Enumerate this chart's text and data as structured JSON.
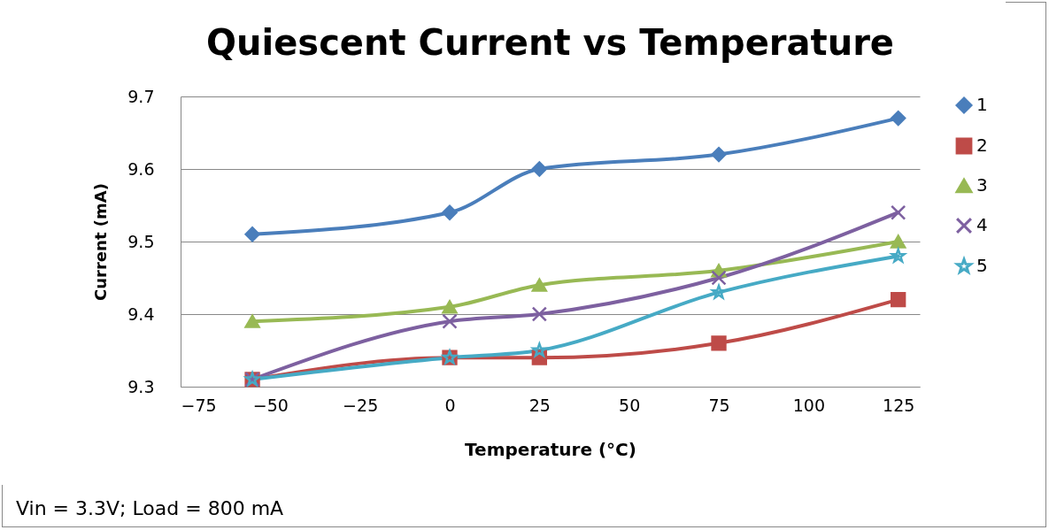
{
  "chart_data": {
    "type": "line",
    "title": "Quiescent Current vs Temperature",
    "xlabel": "Temperature (°C)",
    "ylabel": "Current (mA)",
    "x": [
      -55,
      0,
      25,
      75,
      125
    ],
    "series": [
      {
        "name": "1",
        "color": "#4a7ebb",
        "marker": "diamond",
        "values": [
          9.51,
          9.54,
          9.6,
          9.62,
          9.67
        ]
      },
      {
        "name": "2",
        "color": "#be4b48",
        "marker": "square",
        "values": [
          9.31,
          9.34,
          9.34,
          9.36,
          9.42
        ]
      },
      {
        "name": "3",
        "color": "#98b954",
        "marker": "triangle",
        "values": [
          9.39,
          9.41,
          9.44,
          9.46,
          9.5
        ]
      },
      {
        "name": "4",
        "color": "#7d60a0",
        "marker": "cross",
        "values": [
          9.31,
          9.39,
          9.4,
          9.45,
          9.54
        ]
      },
      {
        "name": "5",
        "color": "#46aac5",
        "marker": "star",
        "values": [
          9.31,
          9.34,
          9.35,
          9.43,
          9.48
        ]
      }
    ],
    "xlim": [
      -75,
      131
    ],
    "xticks": [
      -75,
      -50,
      -25,
      0,
      25,
      50,
      75,
      100,
      125
    ],
    "ylim": [
      9.3,
      9.7
    ],
    "yticks": [
      9.3,
      9.4,
      9.5,
      9.6,
      9.7
    ],
    "grid": "y",
    "legend": "right",
    "annotations": [
      "Vin = 3.3V; Load = 800 mA"
    ]
  }
}
